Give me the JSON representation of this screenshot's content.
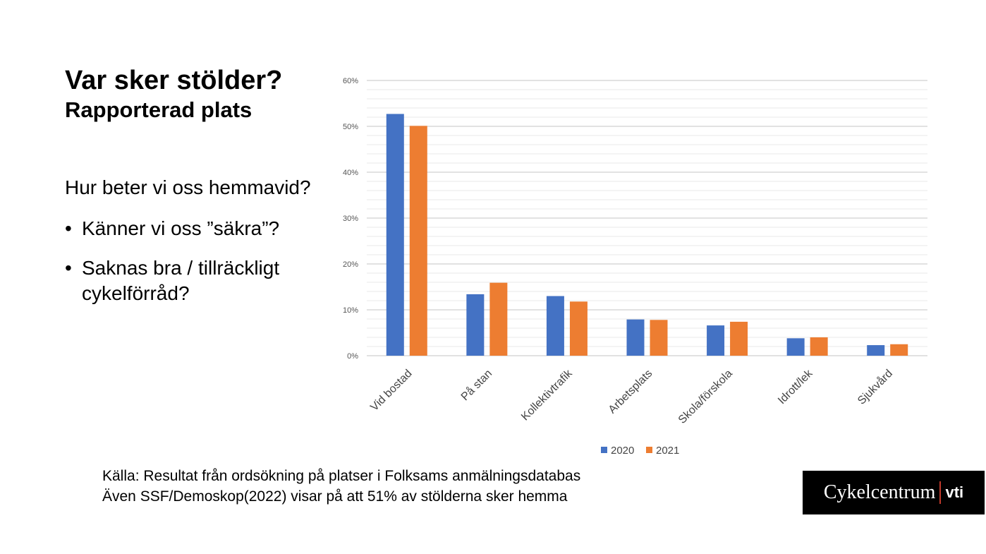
{
  "slide": {
    "title": "Var sker stölder?",
    "subtitle": "Rapporterad plats",
    "intro": "Hur beter vi oss hemmavid?",
    "bullets": [
      "Känner vi oss ”säkra”?",
      "Saknas bra / tillräckligt cykelförråd?"
    ],
    "source_line1": "Källa: Resultat från ordsökning på platser i Folksams anmälningsdatabas",
    "source_line2": "Även SSF/Demoskop(2022) visar på att 51% av stölderna sker hemma",
    "logo_name": "Cykelcentrum",
    "logo_vti": "vti"
  },
  "chart_data": {
    "type": "bar",
    "categories": [
      "Vid bostad",
      "På stan",
      "Kollektivtrafik",
      "Arbetsplats",
      "Skola/förskola",
      "Idrott/lek",
      "Sjukvård"
    ],
    "series": [
      {
        "name": "2020",
        "color": "#4472C4",
        "values": [
          52.7,
          13.4,
          13.0,
          7.9,
          6.6,
          3.8,
          2.3
        ]
      },
      {
        "name": "2021",
        "color": "#ED7D31",
        "values": [
          50.1,
          15.9,
          11.8,
          7.8,
          7.4,
          4.0,
          2.5
        ]
      }
    ],
    "ylim": [
      0,
      60
    ],
    "yticks": [
      "0%",
      "10%",
      "20%",
      "30%",
      "40%",
      "50%",
      "60%"
    ],
    "grid": true,
    "legend": "bottom"
  }
}
